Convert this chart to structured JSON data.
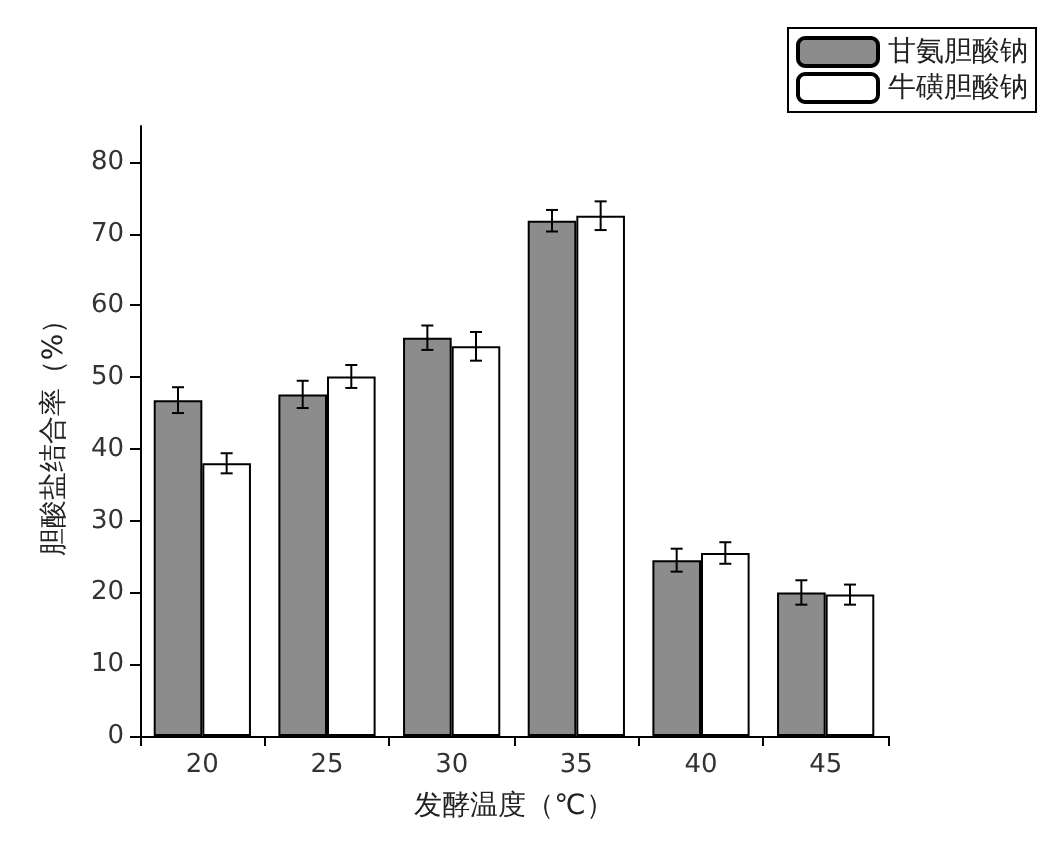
{
  "chart_data": {
    "type": "bar",
    "xlabel": "发酵温度（℃）",
    "ylabel": "胆酸盐结合率（%）",
    "categories": [
      "20",
      "25",
      "30",
      "35",
      "40",
      "45"
    ],
    "series": [
      {
        "name": "甘氨胆酸钠",
        "color": "#8c8c8c",
        "values": [
          46.8,
          47.6,
          55.5,
          71.8,
          24.5,
          20.0
        ],
        "errors": [
          1.8,
          1.9,
          1.7,
          1.5,
          1.6,
          1.7
        ]
      },
      {
        "name": "牛磺胆酸钠",
        "color": "#ffffff",
        "values": [
          38.0,
          50.1,
          54.3,
          72.5,
          25.5,
          19.7
        ],
        "errors": [
          1.4,
          1.6,
          2.0,
          2.0,
          1.5,
          1.4
        ]
      }
    ],
    "ylim": [
      0,
      85
    ],
    "yticks": [
      0,
      10,
      20,
      30,
      40,
      50,
      60,
      70,
      80
    ],
    "grid": false,
    "legend": "top right"
  }
}
